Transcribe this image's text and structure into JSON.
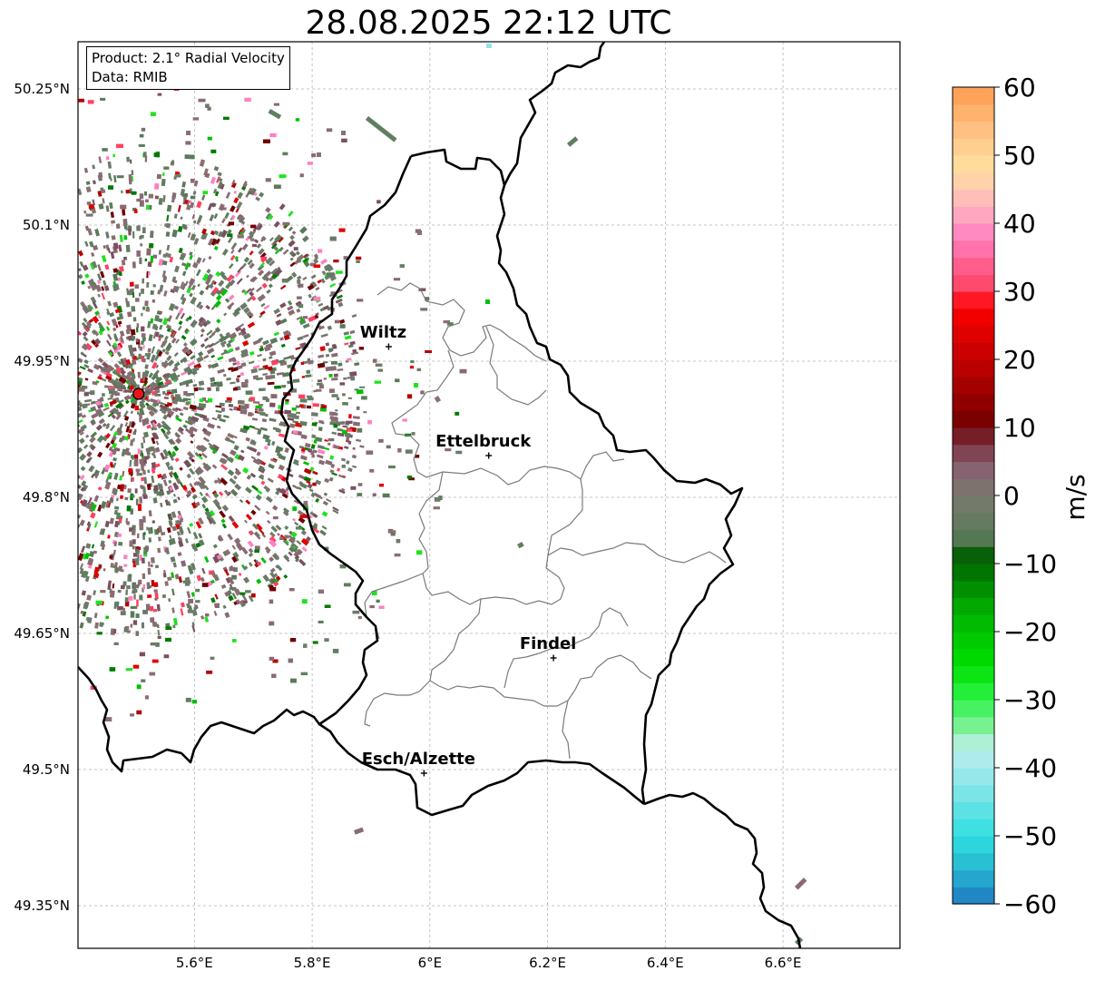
{
  "title": "28.08.2025 22:12 UTC",
  "info": {
    "product": "Product: 2.1° Radial Velocity",
    "data_source": "Data: RMIB"
  },
  "map": {
    "lon_range": [
      5.4,
      6.8
    ],
    "lat_range": [
      49.3,
      50.3
    ],
    "lon_ticks": [
      {
        "value": 5.6,
        "label": "5.6°E"
      },
      {
        "value": 5.8,
        "label": "5.8°E"
      },
      {
        "value": 6.0,
        "label": "6°E"
      },
      {
        "value": 6.2,
        "label": "6.2°E"
      },
      {
        "value": 6.4,
        "label": "6.4°E"
      },
      {
        "value": 6.6,
        "label": "6.6°E"
      }
    ],
    "lat_ticks": [
      {
        "value": 50.25,
        "label": "50.25°N"
      },
      {
        "value": 50.1,
        "label": "50.1°N"
      },
      {
        "value": 49.95,
        "label": "49.95°N"
      },
      {
        "value": 49.8,
        "label": "49.8°N"
      },
      {
        "value": 49.65,
        "label": "49.65°N"
      },
      {
        "value": 49.5,
        "label": "49.5°N"
      },
      {
        "value": 49.35,
        "label": "49.35°N"
      }
    ],
    "cities": [
      {
        "name": "Wiltz",
        "lon": 5.93,
        "lat": 49.966
      },
      {
        "name": "Ettelbruck",
        "lon": 6.1,
        "lat": 49.846
      },
      {
        "name": "Findel",
        "lon": 6.21,
        "lat": 49.623
      },
      {
        "name": "Esch/Alzette",
        "lon": 5.99,
        "lat": 49.496
      }
    ],
    "radar_site": {
      "lon": 5.505,
      "lat": 49.914
    },
    "radar_color": "#e8141a"
  },
  "colorbar": {
    "label": "m/s",
    "min": -60,
    "max": 60,
    "ticks": [
      60,
      50,
      40,
      30,
      20,
      10,
      0,
      -10,
      -20,
      -30,
      -40,
      -50,
      -60
    ],
    "tick_labels": [
      "60",
      "50",
      "40",
      "30",
      "20",
      "10",
      "0",
      "−10",
      "−20",
      "−30",
      "−40",
      "−50",
      "−60"
    ],
    "stops": [
      {
        "value": -60,
        "color": "#1f78c1"
      },
      {
        "value": -55,
        "color": "#27b5cf"
      },
      {
        "value": -50,
        "color": "#2fdfe0"
      },
      {
        "value": -42,
        "color": "#8fe6e8"
      },
      {
        "value": -37,
        "color": "#bfeef0"
      },
      {
        "value": -35,
        "color": "#8ff2a9"
      },
      {
        "value": -30,
        "color": "#2ef24a"
      },
      {
        "value": -25,
        "color": "#00e000"
      },
      {
        "value": -17,
        "color": "#00b000"
      },
      {
        "value": -9,
        "color": "#005e00"
      },
      {
        "value": -6,
        "color": "#5a7a5a"
      },
      {
        "value": 0,
        "color": "#7a7a6e"
      },
      {
        "value": 4,
        "color": "#886070"
      },
      {
        "value": 8,
        "color": "#7a3040"
      },
      {
        "value": 10,
        "color": "#700000"
      },
      {
        "value": 18,
        "color": "#b40000"
      },
      {
        "value": 28,
        "color": "#ff0000"
      },
      {
        "value": 30,
        "color": "#ff4060"
      },
      {
        "value": 38,
        "color": "#ff80c0"
      },
      {
        "value": 42,
        "color": "#ffb0c0"
      },
      {
        "value": 48,
        "color": "#ffe0a0"
      },
      {
        "value": 54,
        "color": "#ffc080"
      },
      {
        "value": 60,
        "color": "#ff9a50"
      }
    ]
  }
}
